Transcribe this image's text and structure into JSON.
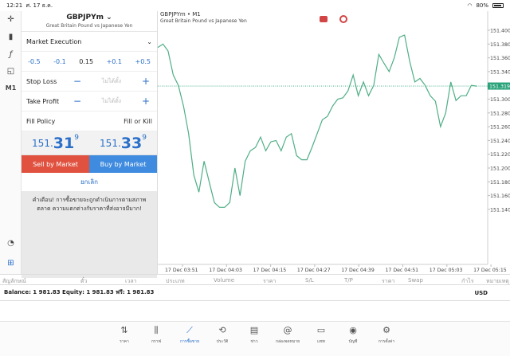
{
  "status_bar": {
    "time": "12:21",
    "date": "ศ. 17 ธ.ค.",
    "battery": "80%"
  },
  "left_toolbar": [
    {
      "name": "crosshair-icon",
      "glyph": "✛"
    },
    {
      "name": "candlestick-icon",
      "glyph": "▮"
    },
    {
      "name": "indicator-f-icon",
      "glyph": "ƒ"
    },
    {
      "name": "objects-icon",
      "glyph": "◱"
    },
    {
      "name": "timeframe",
      "glyph": "M1"
    },
    {
      "name": "trade-history-icon",
      "glyph": "◔"
    },
    {
      "name": "new-order-icon",
      "glyph": "⊞"
    }
  ],
  "order_panel": {
    "symbol": "GBPJPYm",
    "symbol_chevron": "⌄",
    "description": "Great Britain Pound vs Japanese Yen",
    "execution": "Market Execution",
    "volume_steps": [
      "-0.5",
      "-0.1",
      "0.15",
      "+0.1",
      "+0.5"
    ],
    "stop_loss_label": "Stop Loss",
    "take_profit_label": "Take Profit",
    "not_set": "ไม่ได้ตั้ง",
    "minus": "−",
    "plus": "+",
    "fill_policy_label": "Fill Policy",
    "fill_policy_value": "Fill or Kill",
    "bid": {
      "small": "151.",
      "big": "31",
      "sup": "9"
    },
    "ask": {
      "small": "151.",
      "big": "33",
      "sup": "9"
    },
    "sell_label": "Sell by Market",
    "buy_label": "Buy by Market",
    "cancel_label": "ยกเลิก",
    "warning": "คำเตือน! การซื้อขายจะถูกดำเนินการตามสภาพตลาด ความแตกต่างกับราคาที่ส่งอาจมีมาก!"
  },
  "chart": {
    "title": "GBPJPYm • M1",
    "subtitle": "Great Britain Pound vs Japanese Yen",
    "line_color": "#4fae86",
    "current_price_color": "#2aa37a"
  },
  "chart_data": {
    "type": "line",
    "y_ticks": [
      "151.400",
      "151.380",
      "151.360",
      "151.340",
      "151.320",
      "151.300",
      "151.280",
      "151.260",
      "151.240",
      "151.220",
      "151.200",
      "151.180",
      "151.160",
      "151.140"
    ],
    "ylim": [
      151.13,
      151.41
    ],
    "x_ticks": [
      "17 Dec 03:51",
      "17 Dec 04:03",
      "17 Dec 04:15",
      "17 Dec 04:27",
      "17 Dec 04:39",
      "17 Dec 04:51",
      "17 Dec 05:03",
      "17 Dec 05:15"
    ],
    "current_price": 151.319,
    "current_price_label": "151.319",
    "series": [
      {
        "values": [
          151.375,
          151.38,
          151.37,
          151.335,
          151.32,
          151.29,
          151.25,
          151.19,
          151.165,
          151.21,
          151.18,
          151.15,
          151.143,
          151.143,
          151.15,
          151.2,
          151.16,
          151.21,
          151.225,
          151.23,
          151.245,
          151.225,
          151.238,
          151.24,
          151.225,
          151.245,
          151.25,
          151.218,
          151.212,
          151.212,
          151.23,
          151.25,
          151.27,
          151.275,
          151.29,
          151.3,
          151.302,
          151.312,
          151.335,
          151.305,
          151.325,
          151.305,
          151.32,
          151.365,
          151.352,
          151.34,
          151.36,
          151.39,
          151.393,
          151.355,
          151.325,
          151.33,
          151.32,
          151.305,
          151.297,
          151.26,
          151.28,
          151.325,
          151.298,
          151.305,
          151.305,
          151.32,
          151.319
        ]
      }
    ]
  },
  "table_headers": [
    "สัญลักษณ์",
    "ตั๋ว",
    "เวลา",
    "ประเภท",
    "Volume",
    "ราคา",
    "S/L",
    "T/P",
    "ราคา",
    "Swap",
    "กำไร",
    "หมายเหตุ"
  ],
  "balance": {
    "text": "Balance: 1 981.83 Equity: 1 981.83 ฟรี: 1 981.83",
    "currency": "USD"
  },
  "tabs": [
    {
      "label": "ราคา",
      "icon": "quotes-icon",
      "glyph": "⇅"
    },
    {
      "label": "กราฟ",
      "icon": "chart-icon",
      "glyph": "⫼"
    },
    {
      "label": "การซื้อขาย",
      "icon": "trade-icon",
      "glyph": "⟋"
    },
    {
      "label": "ประวัติ",
      "icon": "history-icon",
      "glyph": "⟲"
    },
    {
      "label": "ข่าว",
      "icon": "news-icon",
      "glyph": "▤"
    },
    {
      "label": "กล่องจดหมาย",
      "icon": "mailbox-icon",
      "glyph": "@"
    },
    {
      "label": "แชท",
      "icon": "chat-icon",
      "glyph": "▭"
    },
    {
      "label": "บัญชี",
      "icon": "account-icon",
      "glyph": "◉"
    },
    {
      "label": "การตั้งค่า",
      "icon": "settings-icon",
      "glyph": "⚙"
    }
  ]
}
